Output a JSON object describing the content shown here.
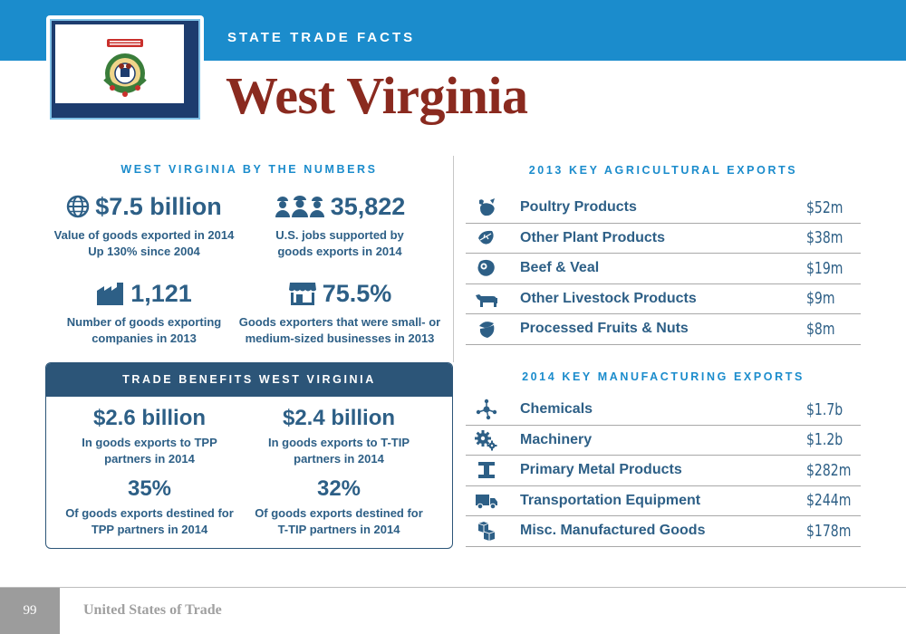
{
  "header": {
    "kicker": "STATE TRADE FACTS",
    "title": "West Virginia",
    "flag_icon": "west-virginia-flag"
  },
  "numbers": {
    "heading": "WEST VIRGINIA BY THE NUMBERS",
    "stats": [
      {
        "value": "$7.5 billion",
        "caption": "Value of goods exported in 2014\nUp 130% since 2004",
        "icon": "globe-icon"
      },
      {
        "value": "35,822",
        "caption": "U.S. jobs supported by\ngoods exports in 2014",
        "icon": "workers-icon"
      },
      {
        "value": "1,121",
        "caption": "Number of goods exporting\ncompanies in 2013",
        "icon": "factory-icon"
      },
      {
        "value": "75.5%",
        "caption": "Goods exporters that were small- or\nmedium-sized businesses in 2013",
        "icon": "storefront-icon"
      }
    ]
  },
  "benefits": {
    "heading": "TRADE BENEFITS WEST VIRGINIA",
    "stats": [
      {
        "value": "$2.6 billion",
        "caption": "In goods exports to TPP\npartners in 2014"
      },
      {
        "value": "$2.4 billion",
        "caption": "In goods exports to T-TIP\npartners in 2014"
      },
      {
        "value": "35%",
        "caption": "Of goods exports destined for\nTPP partners in 2014"
      },
      {
        "value": "32%",
        "caption": "Of goods exports destined for\nT-TIP partners in 2014"
      }
    ]
  },
  "agricultural": {
    "heading": "2013 KEY AGRICULTURAL EXPORTS",
    "items": [
      {
        "label": "Poultry Products",
        "value": "$52m",
        "icon": "chicken-icon"
      },
      {
        "label": "Other Plant Products",
        "value": "$38m",
        "icon": "leaf-icon"
      },
      {
        "label": "Beef & Veal",
        "value": "$19m",
        "icon": "steak-icon"
      },
      {
        "label": "Other Livestock Products",
        "value": "$9m",
        "icon": "cow-icon"
      },
      {
        "label": "Processed Fruits & Nuts",
        "value": "$8m",
        "icon": "nut-icon"
      }
    ]
  },
  "manufacturing": {
    "heading": "2014 KEY MANUFACTURING EXPORTS",
    "items": [
      {
        "label": "Chemicals",
        "value": "$1.7b",
        "icon": "molecule-icon"
      },
      {
        "label": "Machinery",
        "value": "$1.2b",
        "icon": "gears-icon"
      },
      {
        "label": "Primary Metal Products",
        "value": "$282m",
        "icon": "i-beam-icon"
      },
      {
        "label": "Transportation Equipment",
        "value": "$244m",
        "icon": "truck-icon"
      },
      {
        "label": "Misc. Manufactured Goods",
        "value": "$178m",
        "icon": "boxes-icon"
      }
    ]
  },
  "footer": {
    "page_number": "99",
    "publication": "United States of Trade"
  },
  "colors": {
    "top_bar": "#1b8ccc",
    "title": "#8a2a1f",
    "text": "#2d5f86",
    "section_heading": "#1b8ccc",
    "benefits_header": "#2c5578"
  }
}
